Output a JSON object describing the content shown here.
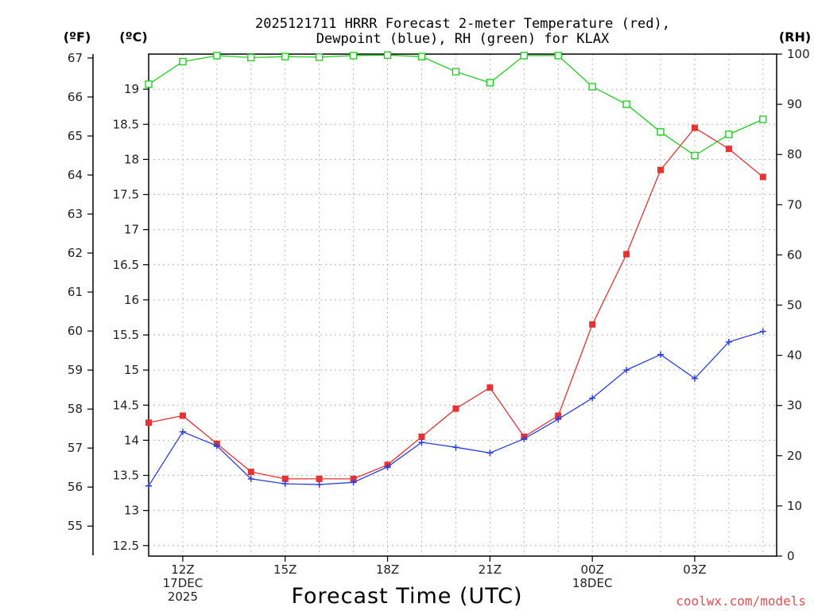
{
  "chart_data": {
    "type": "line",
    "title": "2025121711 HRRR Forecast 2-meter Temperature (red),",
    "subtitle": "Dewpoint (blue), RH (green) for KLAX",
    "xlabel": "Forecast Time (UTC)",
    "credit": "coolwx.com/models",
    "units": {
      "fahrenheit": "(ºF)",
      "celsius": "(ºC)",
      "rh": "(RH)"
    },
    "x_hours": [
      11,
      12,
      13,
      14,
      15,
      16,
      17,
      18,
      19,
      20,
      21,
      22,
      23,
      24,
      25,
      26,
      27,
      28,
      29
    ],
    "x_range": [
      11,
      29.4
    ],
    "x_ticks": [
      {
        "hour": 12,
        "lines": [
          "12Z",
          "17DEC",
          "2025"
        ]
      },
      {
        "hour": 15,
        "lines": [
          "15Z"
        ]
      },
      {
        "hour": 18,
        "lines": [
          "18Z"
        ]
      },
      {
        "hour": 21,
        "lines": [
          "21Z"
        ]
      },
      {
        "hour": 24,
        "lines": [
          "00Z",
          "18DEC"
        ]
      },
      {
        "hour": 27,
        "lines": [
          "03Z"
        ]
      }
    ],
    "celsius_range": [
      12.35,
      19.5
    ],
    "celsius_ticks": [
      "12.5",
      "13",
      "13.5",
      "14",
      "14.5",
      "15",
      "15.5",
      "16",
      "16.5",
      "17",
      "17.5",
      "18",
      "18.5",
      "19"
    ],
    "fahrenheit_ticks": [
      "55",
      "56",
      "57",
      "58",
      "59",
      "60",
      "61",
      "62",
      "63",
      "64",
      "65",
      "66",
      "67"
    ],
    "rh_range": [
      0,
      100
    ],
    "rh_ticks": [
      "0",
      "10",
      "20",
      "30",
      "40",
      "50",
      "60",
      "70",
      "80",
      "90",
      "100"
    ],
    "series": [
      {
        "name": "Temperature",
        "axis": "celsius",
        "color": "#e83232",
        "marker": "filled-square",
        "values": [
          14.25,
          14.35,
          13.95,
          13.55,
          13.45,
          13.45,
          13.45,
          13.65,
          14.05,
          14.45,
          14.75,
          14.05,
          14.35,
          15.65,
          16.65,
          17.85,
          18.45,
          18.15,
          17.75
        ]
      },
      {
        "name": "Dewpoint",
        "axis": "celsius",
        "color": "#2a3ee6",
        "marker": "plus",
        "values": [
          13.35,
          14.12,
          13.92,
          13.45,
          13.38,
          13.37,
          13.4,
          13.62,
          13.97,
          13.9,
          13.82,
          14.02,
          14.3,
          14.6,
          15.0,
          15.22,
          14.88,
          15.4,
          15.55
        ]
      },
      {
        "name": "RH",
        "axis": "rh",
        "color": "#22d022",
        "marker": "open-square",
        "values": [
          94,
          98.5,
          99.7,
          99.3,
          99.5,
          99.4,
          99.7,
          99.8,
          99.5,
          96.5,
          94.3,
          99.7,
          99.7,
          93.5,
          90,
          84.5,
          79.8,
          84,
          87
        ]
      }
    ]
  }
}
